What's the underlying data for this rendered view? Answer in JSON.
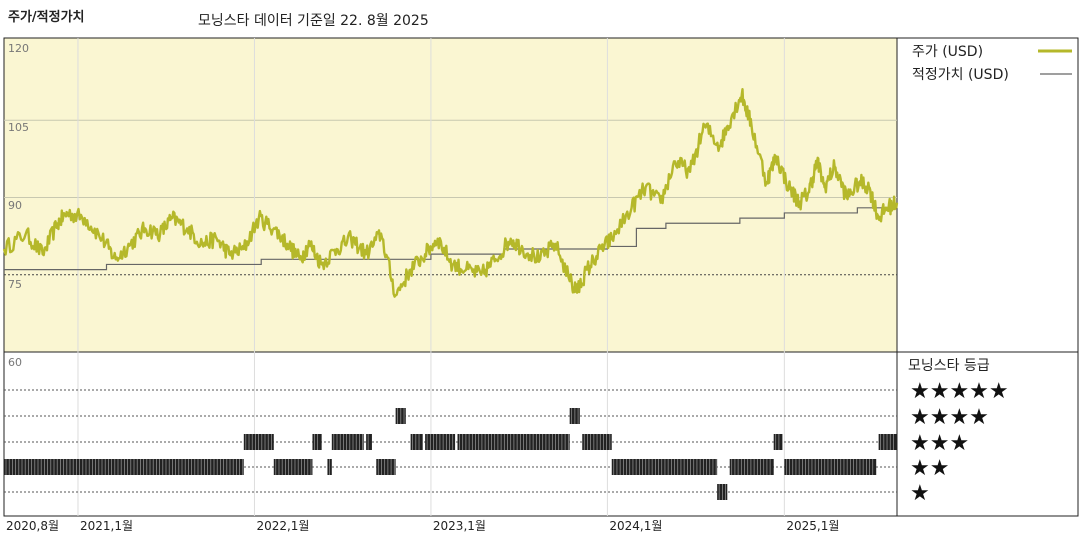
{
  "header": {
    "title": "주가/적정가치",
    "subtitle": "모닝스타 데이터 기준일 22. 8월 2025"
  },
  "legend": {
    "price_label": "주가 (USD)",
    "fair_label": "적정가치 (USD)",
    "rating_title": "모닝스타 등급"
  },
  "colors": {
    "price": "#b5b82a",
    "fair": "#666666",
    "plot_bg": "#faf6d2",
    "bars": "#222222"
  },
  "chart_data": {
    "type": "line",
    "yticks": [
      120,
      105,
      90,
      75,
      60
    ],
    "ylim": [
      60,
      120
    ],
    "xlim": [
      "2020-08-01",
      "2025-08-22"
    ],
    "xticks": [
      {
        "date": "2020-08-01",
        "label": "2020,8월"
      },
      {
        "date": "2021-01-01",
        "label": "2021,1월"
      },
      {
        "date": "2022-01-01",
        "label": "2022,1월"
      },
      {
        "date": "2023-01-01",
        "label": "2023,1월"
      },
      {
        "date": "2024-01-01",
        "label": "2024,1월"
      },
      {
        "date": "2025-01-01",
        "label": "2025,1월"
      }
    ],
    "series": [
      {
        "name": "주가 (USD)",
        "points": [
          [
            "2020-08-01",
            80
          ],
          [
            "2020-09-15",
            83
          ],
          [
            "2020-10-20",
            79
          ],
          [
            "2020-11-20",
            85
          ],
          [
            "2020-12-10",
            87
          ],
          [
            "2021-01-15",
            86
          ],
          [
            "2021-02-20",
            82
          ],
          [
            "2021-03-20",
            78
          ],
          [
            "2021-04-20",
            81
          ],
          [
            "2021-05-20",
            84
          ],
          [
            "2021-06-20",
            83
          ],
          [
            "2021-07-15",
            86
          ],
          [
            "2021-08-15",
            84
          ],
          [
            "2021-09-15",
            81
          ],
          [
            "2021-10-15",
            82
          ],
          [
            "2021-11-10",
            79
          ],
          [
            "2021-12-10",
            80
          ],
          [
            "2022-01-10",
            86
          ],
          [
            "2022-02-10",
            84
          ],
          [
            "2022-03-10",
            81
          ],
          [
            "2022-04-05",
            78
          ],
          [
            "2022-04-25",
            81
          ],
          [
            "2022-05-20",
            77
          ],
          [
            "2022-06-20",
            80
          ],
          [
            "2022-07-20",
            82
          ],
          [
            "2022-08-20",
            79
          ],
          [
            "2022-09-20",
            83
          ],
          [
            "2022-10-20",
            71
          ],
          [
            "2022-11-20",
            76
          ],
          [
            "2022-12-20",
            79
          ],
          [
            "2023-01-15",
            82
          ],
          [
            "2023-02-15",
            77
          ],
          [
            "2023-03-15",
            76
          ],
          [
            "2023-04-15",
            75
          ],
          [
            "2023-05-15",
            78
          ],
          [
            "2023-06-15",
            82
          ],
          [
            "2023-07-10",
            80
          ],
          [
            "2023-08-15",
            78
          ],
          [
            "2023-09-15",
            81
          ],
          [
            "2023-10-20",
            73
          ],
          [
            "2023-11-01",
            72
          ],
          [
            "2023-11-20",
            76
          ],
          [
            "2023-12-20",
            80
          ],
          [
            "2024-01-10",
            82
          ],
          [
            "2024-02-20",
            88
          ],
          [
            "2024-03-20",
            92
          ],
          [
            "2024-04-20",
            89
          ],
          [
            "2024-05-20",
            97
          ],
          [
            "2024-06-20",
            95
          ],
          [
            "2024-07-20",
            104
          ],
          [
            "2024-08-20",
            100
          ],
          [
            "2024-09-15",
            106
          ],
          [
            "2024-10-05",
            110
          ],
          [
            "2024-10-25",
            104
          ],
          [
            "2024-11-25",
            93
          ],
          [
            "2024-12-15",
            98
          ],
          [
            "2025-01-10",
            92
          ],
          [
            "2025-02-01",
            89
          ],
          [
            "2025-02-20",
            91
          ],
          [
            "2025-03-10",
            97
          ],
          [
            "2025-03-25",
            92
          ],
          [
            "2025-04-15",
            96
          ],
          [
            "2025-05-10",
            90
          ],
          [
            "2025-06-05",
            93
          ],
          [
            "2025-06-25",
            92
          ],
          [
            "2025-07-15",
            86
          ],
          [
            "2025-08-01",
            88
          ],
          [
            "2025-08-22",
            89
          ]
        ]
      },
      {
        "name": "적정가치 (USD)",
        "steps": [
          [
            "2020-08-01",
            76
          ],
          [
            "2021-03-01",
            77
          ],
          [
            "2022-01-15",
            78
          ],
          [
            "2023-01-01",
            79
          ],
          [
            "2023-06-01",
            80
          ],
          [
            "2024-01-01",
            80.5
          ],
          [
            "2024-03-01",
            84
          ],
          [
            "2024-05-01",
            85
          ],
          [
            "2024-10-01",
            86
          ],
          [
            "2025-01-01",
            87
          ],
          [
            "2025-06-01",
            88
          ],
          [
            "2025-08-22",
            88
          ]
        ]
      }
    ],
    "rating": {
      "levels": [
        "★★★★★",
        "★★★★",
        "★★★",
        "★★",
        "★"
      ],
      "periods": [
        [
          "2020-08-01",
          "2021-12-10",
          2
        ],
        [
          "2021-12-10",
          "2022-02-10",
          3
        ],
        [
          "2022-02-10",
          "2022-05-01",
          2
        ],
        [
          "2022-05-01",
          "2022-05-20",
          3
        ],
        [
          "2022-06-01",
          "2022-06-10",
          2
        ],
        [
          "2022-06-10",
          "2022-08-15",
          3
        ],
        [
          "2022-08-20",
          "2022-09-01",
          3
        ],
        [
          "2022-09-10",
          "2022-10-20",
          2
        ],
        [
          "2022-10-20",
          "2022-11-10",
          4
        ],
        [
          "2022-11-20",
          "2022-12-15",
          3
        ],
        [
          "2022-12-20",
          "2023-02-20",
          3
        ],
        [
          "2023-02-25",
          "2023-10-15",
          3
        ],
        [
          "2023-10-15",
          "2023-11-05",
          4
        ],
        [
          "2023-11-10",
          "2024-01-10",
          3
        ],
        [
          "2024-01-10",
          "2024-08-15",
          2
        ],
        [
          "2024-08-15",
          "2024-09-05",
          1
        ],
        [
          "2024-09-10",
          "2024-12-10",
          2
        ],
        [
          "2024-12-10",
          "2024-12-28",
          3
        ],
        [
          "2025-01-01",
          "2025-07-10",
          2
        ],
        [
          "2025-07-15",
          "2025-08-22",
          3
        ]
      ]
    }
  }
}
